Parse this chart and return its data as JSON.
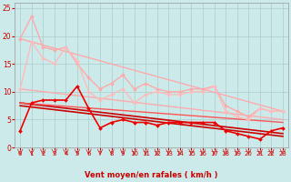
{
  "xlabel": "Vent moyen/en rafales ( km/h )",
  "bg_color": "#cceaea",
  "grid_color": "#aacccc",
  "xlim": [
    -0.5,
    23.5
  ],
  "ylim": [
    0,
    26
  ],
  "yticks": [
    0,
    5,
    10,
    15,
    20,
    25
  ],
  "xticks": [
    0,
    1,
    2,
    3,
    4,
    5,
    6,
    7,
    8,
    9,
    10,
    11,
    12,
    13,
    14,
    15,
    16,
    17,
    18,
    19,
    20,
    21,
    22,
    23
  ],
  "series": [
    {
      "x": [
        0,
        23
      ],
      "y": [
        19.5,
        6.5
      ],
      "color": "#ffaaaa",
      "linewidth": 1.0,
      "marker": null
    },
    {
      "x": [
        0,
        23
      ],
      "y": [
        10.5,
        5.0
      ],
      "color": "#ffaaaa",
      "linewidth": 1.0,
      "marker": null
    },
    {
      "x": [
        0,
        1,
        2,
        3,
        4,
        5,
        6,
        7,
        8,
        9,
        10,
        11,
        12,
        13,
        14,
        15,
        16,
        17,
        18,
        19,
        20,
        21,
        22,
        23
      ],
      "y": [
        19.5,
        23.5,
        18.0,
        17.5,
        18.0,
        15.0,
        12.5,
        10.5,
        11.5,
        13.0,
        10.5,
        11.5,
        10.5,
        10.0,
        10.0,
        10.5,
        10.5,
        11.0,
        7.5,
        6.5,
        5.5,
        7.0,
        6.5,
        6.5
      ],
      "color": "#ffaaaa",
      "linewidth": 1.0,
      "marker": "D",
      "markersize": 2.0
    },
    {
      "x": [
        0,
        1,
        2,
        3,
        4,
        5,
        6,
        7,
        8,
        9,
        10,
        11,
        12,
        13,
        14,
        15,
        16,
        17,
        18,
        19,
        20,
        21,
        22,
        23
      ],
      "y": [
        10.5,
        19.0,
        16.0,
        15.0,
        18.0,
        15.5,
        10.0,
        8.5,
        9.5,
        10.5,
        8.0,
        9.5,
        10.0,
        9.5,
        9.5,
        10.0,
        10.0,
        11.0,
        6.5,
        5.5,
        5.0,
        7.0,
        6.5,
        6.5
      ],
      "color": "#ffbbbb",
      "linewidth": 1.0,
      "marker": "D",
      "markersize": 2.0
    },
    {
      "x": [
        0,
        1,
        2,
        3,
        4,
        5,
        6,
        7,
        8,
        9,
        10,
        11,
        12,
        13,
        14,
        15,
        16,
        17,
        18,
        19,
        20,
        21,
        22,
        23
      ],
      "y": [
        3.0,
        8.0,
        8.5,
        8.5,
        8.5,
        11.0,
        7.0,
        3.5,
        4.5,
        5.0,
        4.5,
        4.5,
        4.0,
        4.5,
        4.5,
        4.5,
        4.5,
        4.5,
        3.0,
        2.5,
        2.0,
        1.5,
        3.0,
        3.5
      ],
      "color": "#ee0000",
      "linewidth": 1.2,
      "marker": "D",
      "markersize": 2.0
    },
    {
      "x": [
        0,
        23
      ],
      "y": [
        8.0,
        2.5
      ],
      "color": "#cc0000",
      "linewidth": 1.2,
      "marker": null
    },
    {
      "x": [
        0,
        23
      ],
      "y": [
        7.5,
        2.0
      ],
      "color": "#cc0000",
      "linewidth": 1.2,
      "marker": null
    },
    {
      "x": [
        0,
        23
      ],
      "y": [
        8.0,
        4.5
      ],
      "color": "#ff5555",
      "linewidth": 1.0,
      "marker": null
    }
  ],
  "arrow_color": "#cc2222",
  "font_color": "#cc0000"
}
